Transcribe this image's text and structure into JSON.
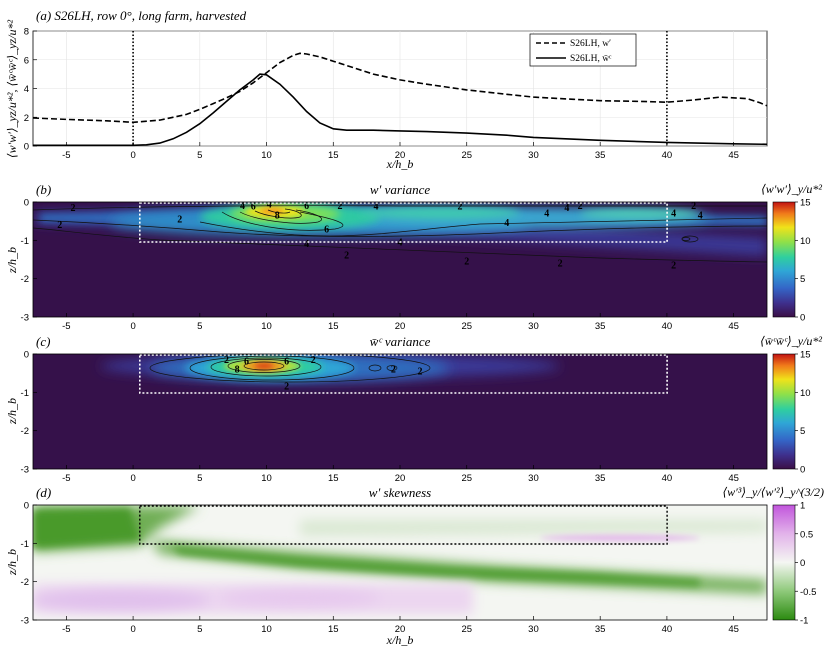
{
  "chart_data": [
    {
      "id": "a",
      "type": "line",
      "title": "(a) S26LH, row 0°, long farm, harvested",
      "xlabel": "x/h_b",
      "ylabel": "⟨w′w′⟩_yz/u*², ⟨w̄ᶜw̄ᶜ⟩_yz/u*²",
      "xlim": [
        -7.5,
        47.5
      ],
      "ylim": [
        0,
        8
      ],
      "xticks": [
        -5,
        0,
        5,
        10,
        15,
        20,
        25,
        30,
        35,
        40,
        45
      ],
      "yticks": [
        0,
        2,
        4,
        6,
        8
      ],
      "vlines": [
        0,
        40
      ],
      "legend": {
        "location": "top-right",
        "entries": [
          "S26LH, w′",
          "S26LH, w̄ᶜ"
        ]
      },
      "series": [
        {
          "name": "S26LH, w′",
          "style": "dashed",
          "x": [
            -7.5,
            -5,
            -2,
            0,
            2,
            4,
            5,
            6,
            7,
            8,
            9,
            10,
            11,
            12,
            12.5,
            13,
            14,
            15,
            16,
            18,
            20,
            22,
            25,
            28,
            30,
            33,
            35,
            38,
            40,
            42,
            44,
            46,
            47,
            47.5
          ],
          "y": [
            1.95,
            1.85,
            1.75,
            1.65,
            1.8,
            2.2,
            2.55,
            2.95,
            3.35,
            3.8,
            4.4,
            5.1,
            5.8,
            6.3,
            6.45,
            6.4,
            6.2,
            5.9,
            5.6,
            5.0,
            4.6,
            4.3,
            3.9,
            3.6,
            3.4,
            3.25,
            3.15,
            3.1,
            3.05,
            3.2,
            3.4,
            3.3,
            3.0,
            2.8
          ]
        },
        {
          "name": "S26LH, w̄ᶜ",
          "style": "solid",
          "x": [
            -7.5,
            -5,
            -2,
            0,
            1,
            2,
            3,
            4,
            5,
            6,
            7,
            8,
            9,
            9.5,
            10,
            11,
            12,
            13,
            14,
            15,
            16,
            18,
            20,
            22,
            25,
            28,
            30,
            35,
            40,
            45,
            47.5
          ],
          "y": [
            0.05,
            0.05,
            0.05,
            0.05,
            0.08,
            0.2,
            0.5,
            0.95,
            1.55,
            2.3,
            3.1,
            3.9,
            4.6,
            5.0,
            4.95,
            4.3,
            3.4,
            2.4,
            1.6,
            1.2,
            1.1,
            1.1,
            1.05,
            1.0,
            0.9,
            0.75,
            0.6,
            0.4,
            0.25,
            0.15,
            0.12
          ]
        }
      ]
    },
    {
      "id": "b",
      "type": "heatmap",
      "panel_label": "(b)",
      "title": "w′ variance",
      "colorbar_label": "⟨w′w′⟩_y/u*²",
      "ylabel": "z/h_b",
      "xlim": [
        -7.5,
        47.5
      ],
      "ylim": [
        -3,
        0
      ],
      "xticks": [
        -5,
        0,
        5,
        10,
        15,
        20,
        25,
        30,
        35,
        40,
        45
      ],
      "yticks": [
        0,
        -1,
        -2,
        -3
      ],
      "clim": [
        0,
        15
      ],
      "cticks": [
        0,
        5,
        10,
        15
      ],
      "farm_box": {
        "x": [
          0,
          40
        ],
        "z": [
          -1,
          0
        ]
      },
      "contour_labels": [
        {
          "text": "2",
          "x": -4.5,
          "z": -0.15
        },
        {
          "text": "2",
          "x": -5.5,
          "z": -0.6
        },
        {
          "text": "2",
          "x": 3.5,
          "z": -0.45
        },
        {
          "text": "4",
          "x": 8.2,
          "z": -0.1
        },
        {
          "text": "6",
          "x": 9.0,
          "z": -0.12
        },
        {
          "text": "4",
          "x": 10.2,
          "z": -0.06
        },
        {
          "text": "8",
          "x": 10.8,
          "z": -0.35
        },
        {
          "text": "6",
          "x": 13.0,
          "z": -0.1
        },
        {
          "text": "2",
          "x": 15.5,
          "z": -0.1
        },
        {
          "text": "4",
          "x": 18.2,
          "z": -0.12
        },
        {
          "text": "6",
          "x": 14.5,
          "z": -0.72
        },
        {
          "text": "4",
          "x": 13.0,
          "z": -1.1
        },
        {
          "text": "4",
          "x": 20.0,
          "z": -1.05
        },
        {
          "text": "4",
          "x": 28.0,
          "z": -0.55
        },
        {
          "text": "2",
          "x": 24.5,
          "z": -0.12
        },
        {
          "text": "4",
          "x": 32.5,
          "z": -0.15
        },
        {
          "text": "4",
          "x": 31.0,
          "z": -0.3
        },
        {
          "text": "2",
          "x": 33.5,
          "z": -0.1
        },
        {
          "text": "4",
          "x": 40.5,
          "z": -0.3
        },
        {
          "text": "4",
          "x": 42.5,
          "z": -0.35
        },
        {
          "text": "2",
          "x": 42.0,
          "z": -0.1
        },
        {
          "text": "2",
          "x": 16.0,
          "z": -1.4
        },
        {
          "text": "2",
          "x": 25.0,
          "z": -1.55
        },
        {
          "text": "2",
          "x": 32.0,
          "z": -1.6
        },
        {
          "text": "2",
          "x": 40.5,
          "z": -1.65
        }
      ]
    },
    {
      "id": "c",
      "type": "heatmap",
      "panel_label": "(c)",
      "title": "w̄ᶜ variance",
      "colorbar_label": "⟨w̄ᶜw̄ᶜ⟩_y/u*²",
      "ylabel": "z/h_b",
      "xlim": [
        -7.5,
        47.5
      ],
      "ylim": [
        -3,
        0
      ],
      "xticks": [
        -5,
        0,
        5,
        10,
        15,
        20,
        25,
        30,
        35,
        40,
        45
      ],
      "yticks": [
        0,
        -1,
        -2,
        -3
      ],
      "clim": [
        0,
        15
      ],
      "cticks": [
        0,
        5,
        10,
        15
      ],
      "farm_box": {
        "x": [
          0,
          40
        ],
        "z": [
          -1,
          0
        ]
      },
      "contour_labels": [
        {
          "text": "2",
          "x": 7.0,
          "z": -0.15
        },
        {
          "text": "6",
          "x": 8.5,
          "z": -0.2
        },
        {
          "text": "8",
          "x": 7.8,
          "z": -0.4
        },
        {
          "text": "6",
          "x": 11.5,
          "z": -0.2
        },
        {
          "text": "2",
          "x": 13.5,
          "z": -0.15
        },
        {
          "text": "2",
          "x": 11.5,
          "z": -0.85
        },
        {
          "text": "2",
          "x": 19.5,
          "z": -0.4
        },
        {
          "text": "2",
          "x": 21.5,
          "z": -0.45
        }
      ]
    },
    {
      "id": "d",
      "type": "heatmap",
      "panel_label": "(d)",
      "title": "w′ skewness",
      "colorbar_label": "⟨w′³⟩_y/⟨w′²⟩_y^(3/2)",
      "xlabel": "x/h_b",
      "ylabel": "z/h_b",
      "xlim": [
        -7.5,
        47.5
      ],
      "ylim": [
        -3,
        0
      ],
      "xticks": [
        -5,
        0,
        5,
        10,
        15,
        20,
        25,
        30,
        35,
        40,
        45
      ],
      "yticks": [
        0,
        -1,
        -2,
        -3
      ],
      "clim": [
        -1,
        1
      ],
      "cticks": [
        1,
        0.5,
        0,
        -0.5,
        -1
      ],
      "farm_box": {
        "x": [
          0,
          40
        ],
        "z": [
          -1,
          0
        ]
      }
    }
  ]
}
